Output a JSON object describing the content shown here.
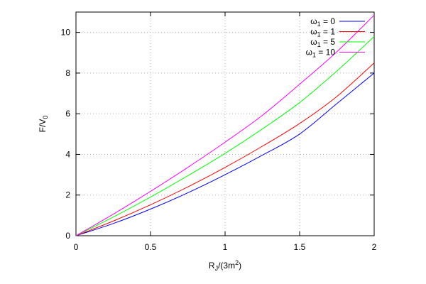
{
  "chart_data": {
    "type": "line",
    "xlabel": {
      "base": "R",
      "sub": "J",
      "rest": "/(3m",
      "sup": "2",
      "close": ")"
    },
    "ylabel": {
      "base": "F/V",
      "sub": "0"
    },
    "xlim": [
      0,
      2
    ],
    "ylim": [
      0,
      11
    ],
    "x_ticks": [
      0,
      0.5,
      1,
      1.5,
      2
    ],
    "x_tick_labels": [
      "0",
      "0.5",
      "1",
      "1.5",
      "2"
    ],
    "y_ticks": [
      0,
      2,
      4,
      6,
      8,
      10
    ],
    "y_tick_labels": [
      "0",
      "2",
      "4",
      "6",
      "8",
      "10"
    ],
    "grid": true,
    "legend_position": "top-right",
    "x": [
      0,
      0.25,
      0.5,
      0.75,
      1.0,
      1.25,
      1.5,
      1.75,
      2.0
    ],
    "series": [
      {
        "name_base": "ω",
        "name_sub": "1",
        "name_rest": " = 0",
        "color": "#0000ff",
        "values": [
          0,
          0.6,
          1.31,
          2.11,
          3.0,
          3.96,
          5.0,
          6.5,
          8.0
        ]
      },
      {
        "name_base": "ω",
        "name_sub": "1",
        "name_rest": " = 1",
        "color": "#ff0000",
        "values": [
          0,
          0.72,
          1.52,
          2.4,
          3.36,
          4.4,
          5.52,
          6.85,
          8.5
        ]
      },
      {
        "name_base": "ω",
        "name_sub": "1",
        "name_rest": " = 5",
        "color": "#00ff00",
        "values": [
          0,
          0.92,
          1.9,
          2.95,
          4.05,
          5.25,
          6.55,
          8.1,
          9.8
        ]
      },
      {
        "name_base": "ω",
        "name_sub": "1",
        "name_rest": " = 10",
        "color": "#ff00ff",
        "values": [
          0,
          1.06,
          2.18,
          3.36,
          4.6,
          5.92,
          7.45,
          9.05,
          10.85
        ]
      }
    ]
  }
}
